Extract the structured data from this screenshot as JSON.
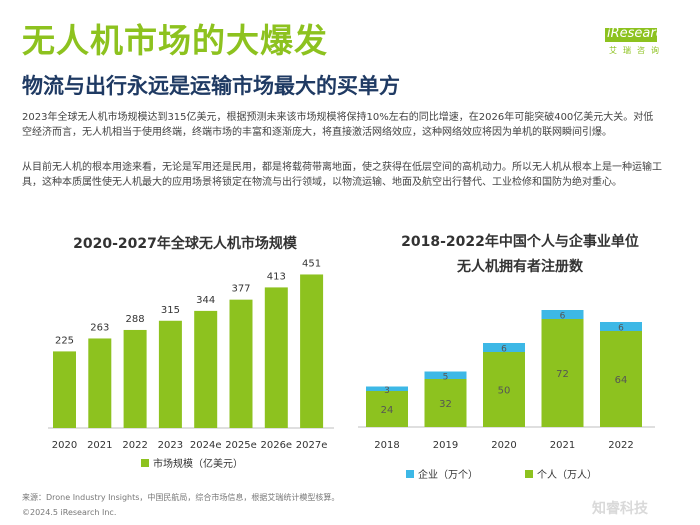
{
  "page": {
    "title": "无人机市场的大爆发",
    "subtitle": "物流与出行永远是运输市场最大的买单方",
    "logo_text": "iResearch",
    "logo_cn": "艾瑞咨询",
    "paragraph1": "2023年全球无人机市场规模达到315亿美元，根据预测未来该市场规模将保持10%左右的同比增速，在2026年可能突破400亿美元大关。对低空经济而言，无人机相当于使用终端，终端市场的丰富和逐渐庞大，将直接激活网络效应，这种网络效应将因为单机的联网瞬间引爆。",
    "paragraph2": "从目前无人机的根本用途来看，无论是军用还是民用，都是将载荷带离地面，使之获得在低层空间的高机动力。所以无人机从根本上是一种运输工具，这种本质属性使无人机最大的应用场景将锁定在物流与出行领域，以物流运输、地面及航空出行替代、工业检修和国防为绝对重心。",
    "source": "来源：Drone Industry Insights，中国民航局，综合市场信息，根据艾瑞统计模型核算。",
    "copyright": "©2024.5 iResearch Inc.",
    "watermark": "知睿科技"
  },
  "colors": {
    "green": "#8dc21f",
    "blue": "#3db8e6",
    "axis": "#bfbfbf"
  },
  "chart_data": [
    {
      "type": "bar",
      "title": "2020-2027年全球无人机市场规模",
      "categories": [
        "2020",
        "2021",
        "2022",
        "2023",
        "2024e",
        "2025e",
        "2026e",
        "2027e"
      ],
      "values": [
        225,
        263,
        288,
        315,
        344,
        377,
        413,
        451
      ],
      "legend": "市场规模（亿美元）",
      "ylim": [
        0,
        470
      ],
      "xlabel": "",
      "ylabel": ""
    },
    {
      "type": "bar",
      "stacked": true,
      "title_line1": "2018-2022年中国个人与企事业单位",
      "title_line2": "无人机拥有者注册数",
      "categories": [
        "2018",
        "2019",
        "2020",
        "2021",
        "2022"
      ],
      "series": [
        {
          "name": "个人（万人）",
          "values": [
            24,
            32,
            50,
            72,
            64
          ]
        },
        {
          "name": "企业（万个）",
          "values": [
            3,
            5,
            6,
            6,
            6
          ]
        }
      ],
      "legend": [
        "企业（万个）",
        "个人（万人）"
      ],
      "ylim": [
        0,
        80
      ]
    }
  ]
}
